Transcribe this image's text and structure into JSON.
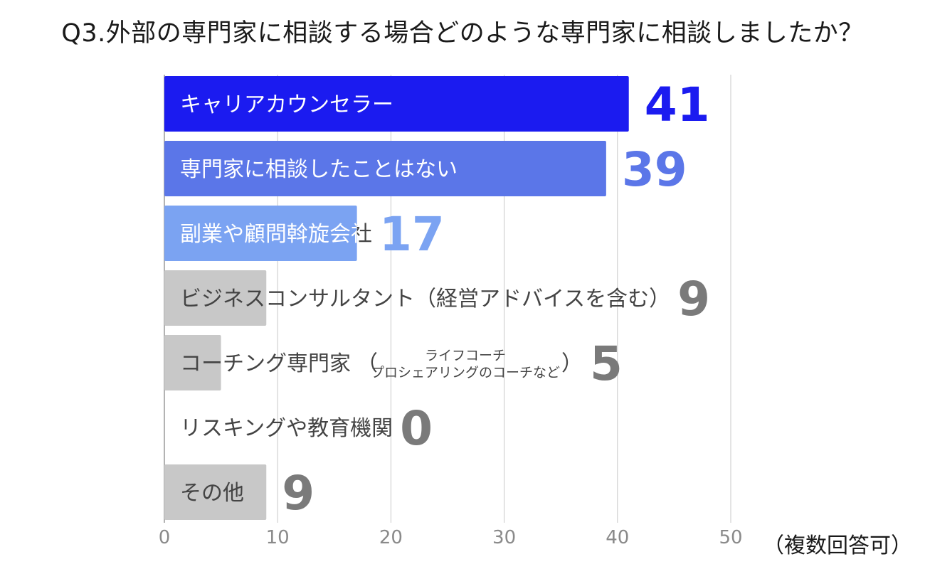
{
  "chart_data": {
    "type": "bar",
    "orientation": "horizontal",
    "title": "Q3.外部の専門家に相談する場合どのような専門家に相談しましたか？",
    "note": "（複数回答可）",
    "xlabel": "",
    "ylabel": "",
    "xlim": [
      0,
      50
    ],
    "xticks": [
      0,
      10,
      20,
      30,
      40,
      50
    ],
    "grid": true,
    "categories": [
      "キャリアカウンセラー",
      "専門家に相談したことはない",
      "副業や顧問斡旋会社",
      "ビジネスコンサルタント（経営アドバイスを含む）",
      "コーチング専門家（ライフコーチ プロシェアリングのコーチなど）",
      "リスキングや教育機関",
      "その他"
    ],
    "label_parts": [
      {
        "main": "キャリアカウンセラー"
      },
      {
        "main": "専門家に相談したことはない"
      },
      {
        "main": "副業や顧問斡旋会社"
      },
      {
        "main": "ビジネスコンサルタント（経営アドバイスを含む）"
      },
      {
        "main": "コーチング専門家",
        "open": "（",
        "sub1": "ライフコーチ",
        "sub2": "プロシェアリングのコーチなど",
        "close": "）"
      },
      {
        "main": "リスキングや教育機関"
      },
      {
        "main": "その他"
      }
    ],
    "values": [
      41,
      39,
      17,
      9,
      5,
      0,
      9
    ],
    "bar_colors": [
      "#1b1bf0",
      "#5b76e8",
      "#7ba3f2",
      "#c8c8c8",
      "#c8c8c8",
      "#c8c8c8",
      "#c8c8c8"
    ],
    "label_colors": [
      "#ffffff",
      "#ffffff",
      "#ffffff",
      "#444444",
      "#444444",
      "#444444",
      "#444444"
    ],
    "value_colors": [
      "#1b1bf0",
      "#5b76e8",
      "#7ba3f2",
      "#7a7a7a",
      "#7a7a7a",
      "#7a7a7a",
      "#7a7a7a"
    ]
  }
}
